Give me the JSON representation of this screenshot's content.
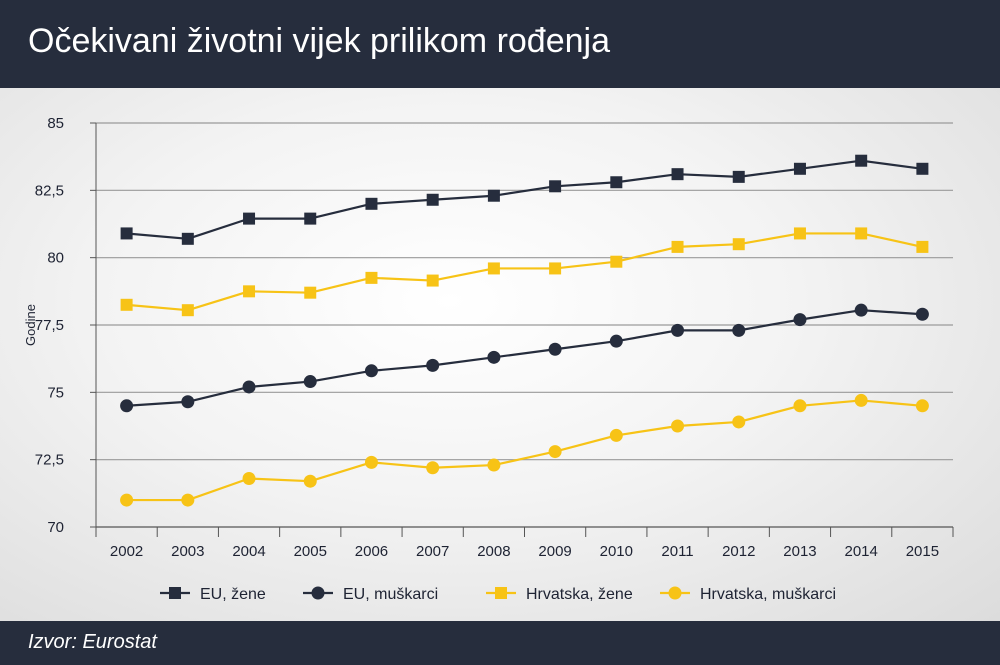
{
  "title": "Očekivani životni vijek prilikom rođenja",
  "source": "Izvor: Eurostat",
  "chart_data": {
    "type": "line",
    "ylabel": "Godine",
    "xlabel": "",
    "ylim": [
      70,
      85
    ],
    "yticks": [
      70,
      72.5,
      75,
      77.5,
      80,
      82.5,
      85
    ],
    "ytick_labels": [
      "70",
      "72,5",
      "75",
      "77,5",
      "80",
      "82,5",
      "85"
    ],
    "grid": "horizontal",
    "legend_position": "bottom",
    "categories": [
      "2002",
      "2003",
      "2004",
      "2005",
      "2006",
      "2007",
      "2008",
      "2009",
      "2010",
      "2011",
      "2012",
      "2013",
      "2014",
      "2015"
    ],
    "series": [
      {
        "name": "EU, žene",
        "color": "#262d3d",
        "marker": "square",
        "values": [
          80.9,
          80.7,
          81.45,
          81.45,
          82.0,
          82.15,
          82.3,
          82.65,
          82.8,
          83.1,
          83.0,
          83.3,
          83.6,
          83.3
        ]
      },
      {
        "name": "EU, muškarci",
        "color": "#262d3d",
        "marker": "circle",
        "values": [
          74.5,
          74.65,
          75.2,
          75.4,
          75.8,
          76.0,
          76.3,
          76.6,
          76.9,
          77.3,
          77.3,
          77.7,
          78.05,
          77.9
        ]
      },
      {
        "name": "Hrvatska, žene",
        "color": "#f7c316",
        "marker": "square",
        "values": [
          78.25,
          78.05,
          78.75,
          78.7,
          79.25,
          79.15,
          79.6,
          79.6,
          79.85,
          80.4,
          80.5,
          80.9,
          80.9,
          80.4
        ]
      },
      {
        "name": "Hrvatska, muškarci",
        "color": "#f7c316",
        "marker": "circle",
        "values": [
          71.0,
          71.0,
          71.8,
          71.7,
          72.4,
          72.2,
          72.3,
          72.8,
          73.4,
          73.75,
          73.9,
          74.5,
          74.7,
          74.5
        ]
      }
    ]
  }
}
